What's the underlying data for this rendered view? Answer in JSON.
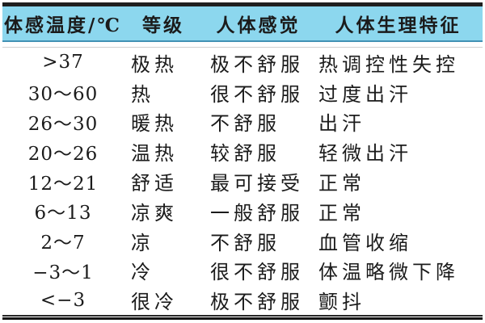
{
  "table": {
    "headers": {
      "temp": "体感温度/℃",
      "level": "等级",
      "feeling": "人体感觉",
      "physio": "人体生理特征"
    },
    "rows": [
      {
        "temp": ">37",
        "level": "极热",
        "feeling": "极不舒服",
        "physio": "热调控性失控"
      },
      {
        "temp": "30～60",
        "level": "热",
        "feeling": "很不舒服",
        "physio": "过度出汗"
      },
      {
        "temp": "26～30",
        "level": "暖热",
        "feeling": "不舒服",
        "physio": "出汗"
      },
      {
        "temp": "20～26",
        "level": "温热",
        "feeling": "较舒服",
        "physio": "轻微出汗"
      },
      {
        "temp": "12～21",
        "level": "舒适",
        "feeling": "最可接受",
        "physio": "正常"
      },
      {
        "temp": "6～13",
        "level": "凉爽",
        "feeling": "一般舒服",
        "physio": "正常"
      },
      {
        "temp": "2～7",
        "level": "凉",
        "feeling": "不舒服",
        "physio": "血管收缩"
      },
      {
        "temp": "−3～1",
        "level": "冷",
        "feeling": "很不舒服",
        "physio": "体温略微下降"
      },
      {
        "temp": "<−3",
        "level": "很冷",
        "feeling": "极不舒服",
        "physio": "颤抖"
      }
    ]
  },
  "colors": {
    "header_bg": "#8cd7ee",
    "header_edge": "#4292b4",
    "rule": "#1f1f1f",
    "text": "#1b1b1b"
  }
}
